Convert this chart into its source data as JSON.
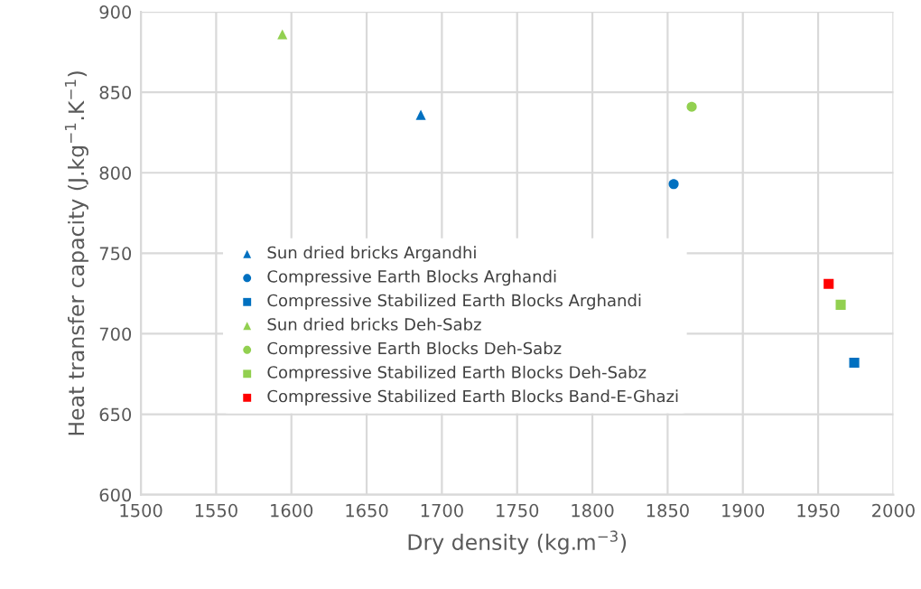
{
  "chart_data": {
    "type": "scatter",
    "xlabel": "Dry density (kg.m$^{−3}$)",
    "ylabel": "Heat transfer capacity (J.kg$^{−1}$.K$^{−1}$)",
    "xlim": [
      1500,
      2000
    ],
    "xticks": [
      1500,
      1550,
      1600,
      1650,
      1700,
      1750,
      1800,
      1850,
      1900,
      1950,
      2000
    ],
    "ylim": [
      600,
      900
    ],
    "yticks": [
      600,
      650,
      700,
      750,
      800,
      850,
      900
    ],
    "grid": true,
    "legend": "left",
    "series": [
      {
        "name": "Sun dried bricks Argandhi",
        "color": "#0070c0",
        "marker": "triangle",
        "x": [
          1686
        ],
        "values": [
          836
        ]
      },
      {
        "name": "Compressive Earth Blocks Arghandi",
        "color": "#0070c0",
        "marker": "circle",
        "x": [
          1854
        ],
        "values": [
          793
        ]
      },
      {
        "name": "Compressive Stabilized Earth Blocks Arghandi",
        "color": "#0070c0",
        "marker": "square",
        "x": [
          1974
        ],
        "values": [
          682
        ]
      },
      {
        "name": "Sun dried bricks Deh-Sabz",
        "color": "#92d050",
        "marker": "triangle",
        "x": [
          1594
        ],
        "values": [
          886
        ]
      },
      {
        "name": "Compressive Earth Blocks Deh-Sabz",
        "color": "#92d050",
        "marker": "circle",
        "x": [
          1866
        ],
        "values": [
          841
        ]
      },
      {
        "name": "Compressive Stabilized Earth Blocks Deh-Sabz",
        "color": "#92d050",
        "marker": "square",
        "x": [
          1965
        ],
        "values": [
          718
        ]
      },
      {
        "name": "Compressive Stabilized Earth Blocks Band-E-Ghazi",
        "color": "#ff0000",
        "marker": "square",
        "x": [
          1957
        ],
        "values": [
          731
        ]
      }
    ]
  }
}
